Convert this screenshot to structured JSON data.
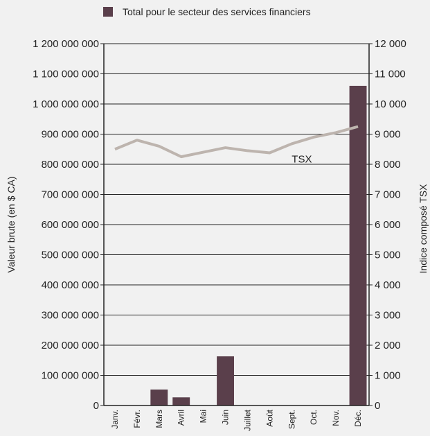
{
  "chart_data": {
    "type": "bar",
    "legend": {
      "label": "Total pour le secteur des services financiers",
      "placement": "top"
    },
    "categories": [
      "Janv.",
      "Févr.",
      "Mars",
      "Avril",
      "Mai",
      "Juin",
      "Juillet",
      "Août",
      "Sept.",
      "Oct.",
      "Nov.",
      "Déc."
    ],
    "series": [
      {
        "name": "Total pour le secteur des services financiers",
        "axis": "left",
        "type": "bar",
        "values": [
          0,
          0,
          53000000,
          27000000,
          0,
          163000000,
          0,
          0,
          0,
          0,
          0,
          1060000000
        ]
      },
      {
        "name": "TSX",
        "axis": "right",
        "type": "line",
        "values": [
          8500,
          8800,
          8600,
          8250,
          8400,
          8550,
          8450,
          8380,
          8680,
          8900,
          9050,
          9250
        ]
      }
    ],
    "ylabel": "Valeur brute (en $ CA)",
    "ylabel_right": "Indice composé TSX",
    "ylim": [
      0,
      1200000000
    ],
    "ylim_right": [
      0,
      12000
    ],
    "yticks": [
      "0",
      "100 000 000",
      "200 000 000",
      "300 000 000",
      "400 000 000",
      "500 000 000",
      "600 000 000",
      "700 000 000",
      "800 000 000",
      "900 000 000",
      "1 000 000 000",
      "1 100 000 000",
      "1 200 000 000"
    ],
    "yticks_right": [
      "0",
      "1 000",
      "2 000",
      "3 000",
      "4 000",
      "5 000",
      "6 000",
      "7 000",
      "8 000",
      "9 000",
      "10 000",
      "11 000",
      "12 000"
    ],
    "line_label": "TSX",
    "grid": true,
    "colors": {
      "bar": "#5a3f4b",
      "line": "#bdb4ae",
      "grid": "#222222",
      "background": "#f1f1f1"
    }
  }
}
